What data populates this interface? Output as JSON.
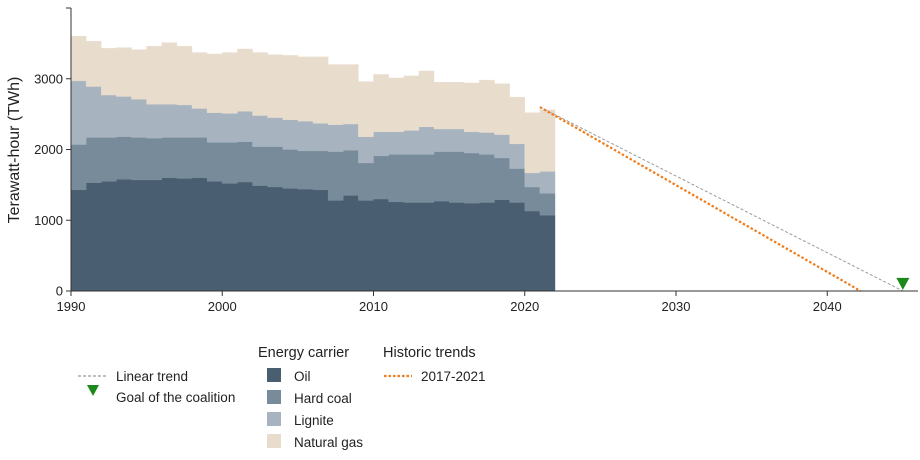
{
  "chart_data": {
    "type": "area",
    "title": "",
    "xlabel": "",
    "ylabel": "Terawatt-hour (TWh)",
    "xlim": [
      1990,
      2046
    ],
    "ylim": [
      0,
      4000
    ],
    "x_ticks": [
      1990,
      2000,
      2010,
      2020,
      2030,
      2040
    ],
    "y_ticks": [
      0,
      1000,
      2000,
      3000
    ],
    "grid": false,
    "colors": {
      "Oil": "#4a5e72",
      "Hard coal": "#788b9b",
      "Lignite": "#a7b4bf",
      "Natural gas": "#e8dccd",
      "linear_trend": "#9a9a9a",
      "historic_trend": "#f07c1c",
      "goal": "#1b8a1b"
    },
    "years": [
      1990,
      1991,
      1992,
      1993,
      1994,
      1995,
      1996,
      1997,
      1998,
      1999,
      2000,
      2001,
      2002,
      2003,
      2004,
      2005,
      2006,
      2007,
      2008,
      2009,
      2010,
      2011,
      2012,
      2013,
      2014,
      2015,
      2016,
      2017,
      2018,
      2019,
      2020,
      2021
    ],
    "series": [
      {
        "name": "Oil",
        "values": [
          1430,
          1530,
          1550,
          1580,
          1570,
          1570,
          1600,
          1590,
          1600,
          1550,
          1520,
          1540,
          1490,
          1470,
          1450,
          1440,
          1430,
          1280,
          1350,
          1280,
          1300,
          1260,
          1250,
          1250,
          1270,
          1250,
          1240,
          1250,
          1290,
          1250,
          1130,
          1070
        ]
      },
      {
        "name": "Hard coal",
        "values": [
          640,
          640,
          620,
          600,
          600,
          590,
          570,
          580,
          570,
          550,
          580,
          570,
          550,
          570,
          550,
          540,
          550,
          690,
          640,
          530,
          610,
          670,
          680,
          680,
          700,
          720,
          710,
          680,
          590,
          480,
          340,
          310
        ]
      },
      {
        "name": "Lignite",
        "values": [
          900,
          720,
          600,
          570,
          540,
          480,
          470,
          460,
          410,
          420,
          410,
          430,
          440,
          410,
          420,
          420,
          390,
          380,
          370,
          370,
          340,
          320,
          340,
          390,
          320,
          320,
          300,
          310,
          330,
          350,
          200,
          310
        ]
      },
      {
        "name": "Natural gas",
        "values": [
          630,
          640,
          660,
          690,
          700,
          820,
          870,
          830,
          790,
          830,
          860,
          880,
          890,
          890,
          910,
          910,
          940,
          850,
          840,
          780,
          810,
          760,
          770,
          790,
          660,
          660,
          690,
          740,
          720,
          660,
          850,
          870
        ]
      }
    ],
    "trend_lines": [
      {
        "name": "Linear trend",
        "from": [
          2021,
          2600
        ],
        "to": [
          2045,
          0
        ],
        "style": "dashed"
      },
      {
        "name": "2017-2021",
        "from": [
          2021,
          2600
        ],
        "to": [
          2042.2,
          0
        ],
        "style": "dotted"
      }
    ],
    "goal_marker": {
      "name": "Goal of the coalition",
      "x": 2045,
      "y": 100
    },
    "legend": {
      "trend_items": [
        {
          "label": "Linear trend",
          "key": "linear"
        },
        {
          "label": "Goal of the coalition",
          "key": "goal"
        }
      ],
      "carrier_title": "Energy carrier",
      "carrier_items": [
        "Oil",
        "Hard coal",
        "Lignite",
        "Natural gas"
      ],
      "historic_title": "Historic trends",
      "historic_items": [
        "2017-2021"
      ]
    }
  }
}
